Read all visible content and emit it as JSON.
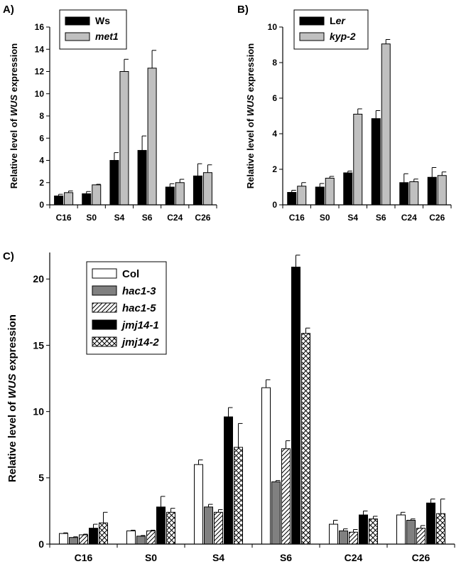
{
  "chart_data": [
    {
      "panel_label": "A)",
      "type": "bar",
      "categories": [
        "C16",
        "S0",
        "S4",
        "S6",
        "C24",
        "C26"
      ],
      "ylabel_parts": [
        "Relative level of ",
        "WUS",
        " expression"
      ],
      "ylim": [
        0,
        16
      ],
      "yticks": [
        "0",
        "2",
        "4",
        "6",
        "8",
        "10",
        "12",
        "14",
        "16"
      ],
      "legend_position": "top-left",
      "series": [
        {
          "name": "Ws",
          "italic": false,
          "fill": "#000000",
          "pattern": "solid",
          "values": [
            0.8,
            1.0,
            4.0,
            4.9,
            1.6,
            2.6
          ],
          "errors": [
            0.15,
            0.2,
            0.7,
            1.3,
            0.3,
            1.1
          ]
        },
        {
          "name": "met1",
          "italic": true,
          "fill": "#c0c0c0",
          "pattern": "solid",
          "values": [
            1.1,
            1.8,
            12.0,
            12.3,
            2.0,
            2.9
          ],
          "errors": [
            0.15,
            0.05,
            1.1,
            1.6,
            0.3,
            0.7
          ]
        }
      ]
    },
    {
      "panel_label": "B)",
      "type": "bar",
      "categories": [
        "C16",
        "S0",
        "S4",
        "S6",
        "C24",
        "C26"
      ],
      "ylabel_parts": [
        "Relative level of ",
        "WUS",
        " expression"
      ],
      "ylim": [
        0,
        10
      ],
      "yticks": [
        "0",
        "2",
        "4",
        "6",
        "8",
        "10"
      ],
      "legend_position": "top-left",
      "series": [
        {
          "name_parts": [
            "L",
            "er"
          ],
          "name_italic": [
            false,
            true
          ],
          "fill": "#000000",
          "pattern": "solid",
          "values": [
            0.7,
            1.0,
            1.8,
            4.85,
            1.25,
            1.55
          ],
          "errors": [
            0.12,
            0.2,
            0.1,
            0.45,
            0.5,
            0.55
          ]
        },
        {
          "name_parts": [
            "kyp-2"
          ],
          "name_italic": [
            true
          ],
          "fill": "#c0c0c0",
          "pattern": "solid",
          "values": [
            1.05,
            1.5,
            5.1,
            9.05,
            1.3,
            1.65
          ],
          "errors": [
            0.2,
            0.1,
            0.3,
            0.25,
            0.15,
            0.2
          ]
        }
      ]
    },
    {
      "panel_label": "C)",
      "type": "bar",
      "categories": [
        "C16",
        "S0",
        "S4",
        "S6",
        "C24",
        "C26"
      ],
      "ylabel_parts": [
        "Relative level of ",
        "WUS",
        " expression"
      ],
      "ylim": [
        0,
        22
      ],
      "yticks": [
        "0",
        "5",
        "10",
        "15",
        "20"
      ],
      "legend_position": "top-left",
      "series": [
        {
          "name": "Col",
          "italic": false,
          "fill": "#ffffff",
          "pattern": "solid",
          "values": [
            0.8,
            1.0,
            6.0,
            11.8,
            1.5,
            2.2
          ],
          "errors": [
            0.05,
            0.05,
            0.35,
            0.6,
            0.3,
            0.2
          ]
        },
        {
          "name": "hac1-3",
          "italic": true,
          "fill": "#808080",
          "pattern": "solid",
          "values": [
            0.5,
            0.6,
            2.8,
            4.7,
            1.0,
            1.8
          ],
          "errors": [
            0.05,
            0.05,
            0.2,
            0.1,
            0.15,
            0.1
          ]
        },
        {
          "name": "hac1-5",
          "italic": true,
          "fill": "#ffffff",
          "pattern": "diagonal",
          "values": [
            0.7,
            1.0,
            2.4,
            7.2,
            0.9,
            1.2
          ],
          "errors": [
            0.05,
            0.05,
            0.2,
            0.6,
            0.2,
            0.2
          ]
        },
        {
          "name": "jmj14-1",
          "italic": true,
          "fill": "#000000",
          "pattern": "solid",
          "values": [
            1.2,
            2.8,
            9.6,
            20.9,
            2.2,
            3.1
          ],
          "errors": [
            0.3,
            0.8,
            0.7,
            0.9,
            0.3,
            0.3
          ]
        },
        {
          "name": "jmj14-2",
          "italic": true,
          "fill": "#ffffff",
          "pattern": "crosshatch",
          "values": [
            1.6,
            2.4,
            7.3,
            15.9,
            1.9,
            2.3
          ],
          "errors": [
            0.8,
            0.3,
            1.8,
            0.4,
            0.2,
            1.1
          ]
        }
      ]
    }
  ]
}
